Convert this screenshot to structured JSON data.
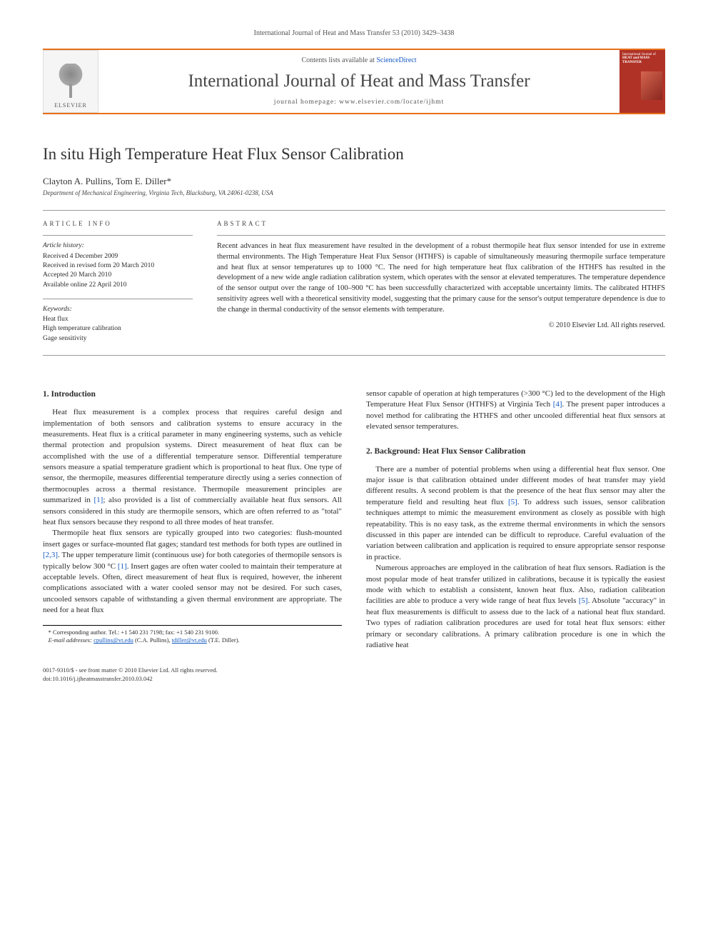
{
  "page_header": "International Journal of Heat and Mass Transfer 53 (2010) 3429–3438",
  "topbar": {
    "contents_label": "Contents lists available at ",
    "contents_link": "ScienceDirect",
    "journal_title": "International Journal of Heat and Mass Transfer",
    "homepage_label": "journal homepage: www.elsevier.com/locate/ijhmt",
    "publisher_name": "ELSEVIER",
    "cover_text_line1": "International Journal of",
    "cover_text_line2": "HEAT and MASS",
    "cover_text_line3": "TRANSFER"
  },
  "article": {
    "title": "In situ High Temperature Heat Flux Sensor Calibration",
    "authors": "Clayton A. Pullins, Tom E. Diller",
    "corr_mark": "*",
    "affiliation": "Department of Mechanical Engineering, Virginia Tech, Blacksburg, VA 24061-0238, USA"
  },
  "info": {
    "heading": "ARTICLE INFO",
    "history_label": "Article history:",
    "received": "Received 4 December 2009",
    "revised": "Received in revised form 20 March 2010",
    "accepted": "Accepted 20 March 2010",
    "available": "Available online 22 April 2010",
    "keywords_label": "Keywords:",
    "kw1": "Heat flux",
    "kw2": "High temperature calibration",
    "kw3": "Gage sensitivity"
  },
  "abstract": {
    "heading": "ABSTRACT",
    "text": "Recent advances in heat flux measurement have resulted in the development of a robust thermopile heat flux sensor intended for use in extreme thermal environments. The High Temperature Heat Flux Sensor (HTHFS) is capable of simultaneously measuring thermopile surface temperature and heat flux at sensor temperatures up to 1000 °C. The need for high temperature heat flux calibration of the HTHFS has resulted in the development of a new wide angle radiation calibration system, which operates with the sensor at elevated temperatures. The temperature dependence of the sensor output over the range of 100–900 °C has been successfully characterized with acceptable uncertainty limits. The calibrated HTHFS sensitivity agrees well with a theoretical sensitivity model, suggesting that the primary cause for the sensor's output temperature dependence is due to the change in thermal conductivity of the sensor elements with temperature.",
    "copyright": "© 2010 Elsevier Ltd. All rights reserved."
  },
  "body": {
    "s1_heading": "1. Introduction",
    "s1_p1": "Heat flux measurement is a complex process that requires careful design and implementation of both sensors and calibration systems to ensure accuracy in the measurements. Heat flux is a critical parameter in many engineering systems, such as vehicle thermal protection and propulsion systems. Direct measurement of heat flux can be accomplished with the use of a differential temperature sensor. Differential temperature sensors measure a spatial temperature gradient which is proportional to heat flux. One type of sensor, the thermopile, measures differential temperature directly using a series connection of thermocouples across a thermal resistance. Thermopile measurement principles are summarized in [1]; also provided is a list of commercially available heat flux sensors. All sensors considered in this study are thermopile sensors, which are often referred to as \"total\" heat flux sensors because they respond to all three modes of heat transfer.",
    "s1_p2": "Thermopile heat flux sensors are typically grouped into two categories: flush-mounted insert gages or surface-mounted flat gages; standard test methods for both types are outlined in [2,3]. The upper temperature limit (continuous use) for both categories of thermopile sensors is typically below 300 °C [1]. Insert gages are often water cooled to maintain their temperature at acceptable levels. Often, direct measurement of heat flux is required, however, the inherent complications associated with a water cooled sensor may not be desired. For such cases, uncooled sensors capable of withstanding a given thermal environment are appropriate. The need for a heat flux",
    "s1_p3": "sensor capable of operation at high temperatures (>300 °C) led to the development of the High Temperature Heat Flux Sensor (HTHFS) at Virginia Tech [4]. The present paper introduces a novel method for calibrating the HTHFS and other uncooled differential heat flux sensors at elevated sensor temperatures.",
    "s2_heading": "2. Background: Heat Flux Sensor Calibration",
    "s2_p1": "There are a number of potential problems when using a differential heat flux sensor. One major issue is that calibration obtained under different modes of heat transfer may yield different results. A second problem is that the presence of the heat flux sensor may alter the temperature field and resulting heat flux [5]. To address such issues, sensor calibration techniques attempt to mimic the measurement environment as closely as possible with high repeatability. This is no easy task, as the extreme thermal environments in which the sensors discussed in this paper are intended can be difficult to reproduce. Careful evaluation of the variation between calibration and application is required to ensure appropriate sensor response in practice.",
    "s2_p2": "Numerous approaches are employed in the calibration of heat flux sensors. Radiation is the most popular mode of heat transfer utilized in calibrations, because it is typically the easiest mode with which to establish a consistent, known heat flux. Also, radiation calibration facilities are able to produce a very wide range of heat flux levels [5]. Absolute \"accuracy\" in heat flux measurements is difficult to assess due to the lack of a national heat flux standard. Two types of radiation calibration procedures are used for total heat flux sensors: either primary or secondary calibrations. A primary calibration procedure is one in which the radiative heat"
  },
  "footnote": {
    "corr": "* Corresponding author. Tel.: +1 540 231 7198; fax: +1 540 231 9100.",
    "emails_label": "E-mail addresses:",
    "email1": "cpullins@vt.edu",
    "email1_who": " (C.A. Pullins), ",
    "email2": "tdiller@vt.edu",
    "email2_who": " (T.E. Diller)."
  },
  "bottom": {
    "line1": "0017-9310/$ - see front matter © 2010 Elsevier Ltd. All rights reserved.",
    "line2": "doi:10.1016/j.ijheatmasstransfer.2010.03.042"
  },
  "colors": {
    "accent": "#e8701a",
    "link": "#1157c1",
    "cover_bg": "#b03226"
  }
}
